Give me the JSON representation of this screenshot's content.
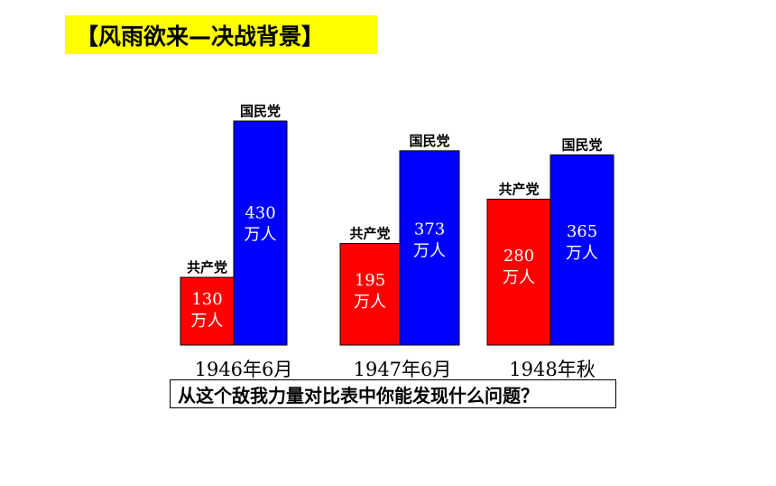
{
  "title": "【风雨欲来—决战背景】",
  "question": "从这个敌我力量对比表中你能发现什么问题？",
  "colors": {
    "communist": "#ff0000",
    "nationalist": "#0000ff",
    "title_bg": "#ffff00"
  },
  "chart_data": {
    "type": "bar",
    "categories": [
      "1946年6月",
      "1947年6月",
      "1948年秋"
    ],
    "unit": "万人",
    "series": [
      {
        "name": "共产党",
        "values": [
          130,
          195,
          280
        ]
      },
      {
        "name": "国民党",
        "values": [
          430,
          373,
          365
        ]
      }
    ],
    "ylim": [
      0,
      430
    ]
  }
}
